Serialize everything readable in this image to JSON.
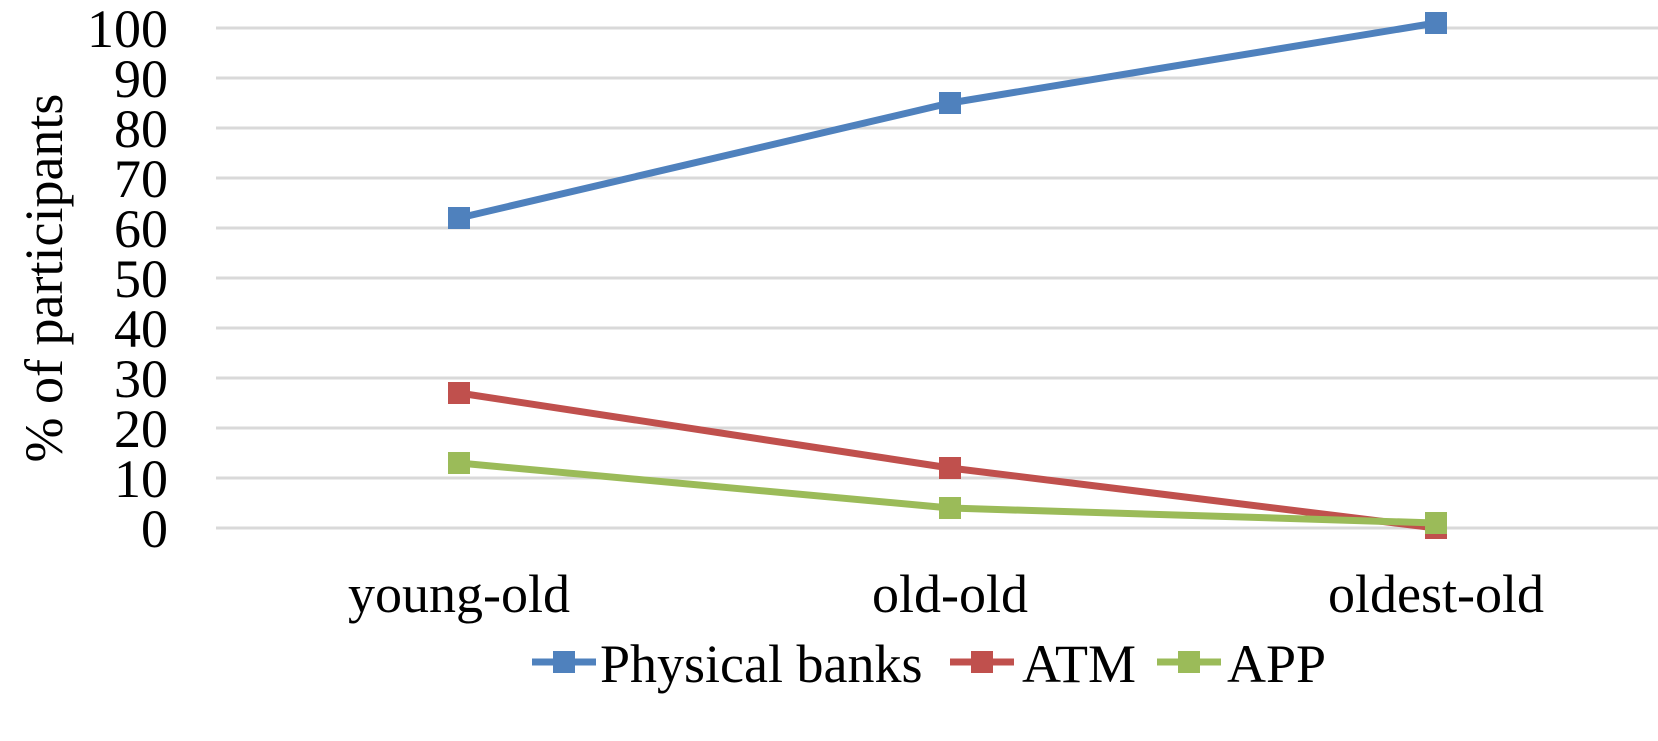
{
  "chart_data": {
    "type": "line",
    "categories": [
      "young-old",
      "old-old",
      "oldest-old"
    ],
    "series": [
      {
        "name": "Physical banks",
        "values": [
          62,
          85,
          101
        ],
        "color": "#4f81bd"
      },
      {
        "name": "ATM",
        "values": [
          27,
          12,
          0
        ],
        "color": "#c0504d"
      },
      {
        "name": "APP",
        "values": [
          13,
          4,
          1
        ],
        "color": "#9bbb59"
      }
    ],
    "title": "",
    "xlabel": "",
    "ylabel": "% of participants",
    "ylim": [
      0,
      100
    ],
    "yticks": [
      "0",
      "10",
      "20",
      "30",
      "40",
      "50",
      "60",
      "70",
      "80",
      "90",
      "100"
    ],
    "grid": true,
    "legend": "bottom",
    "marker": "square"
  }
}
